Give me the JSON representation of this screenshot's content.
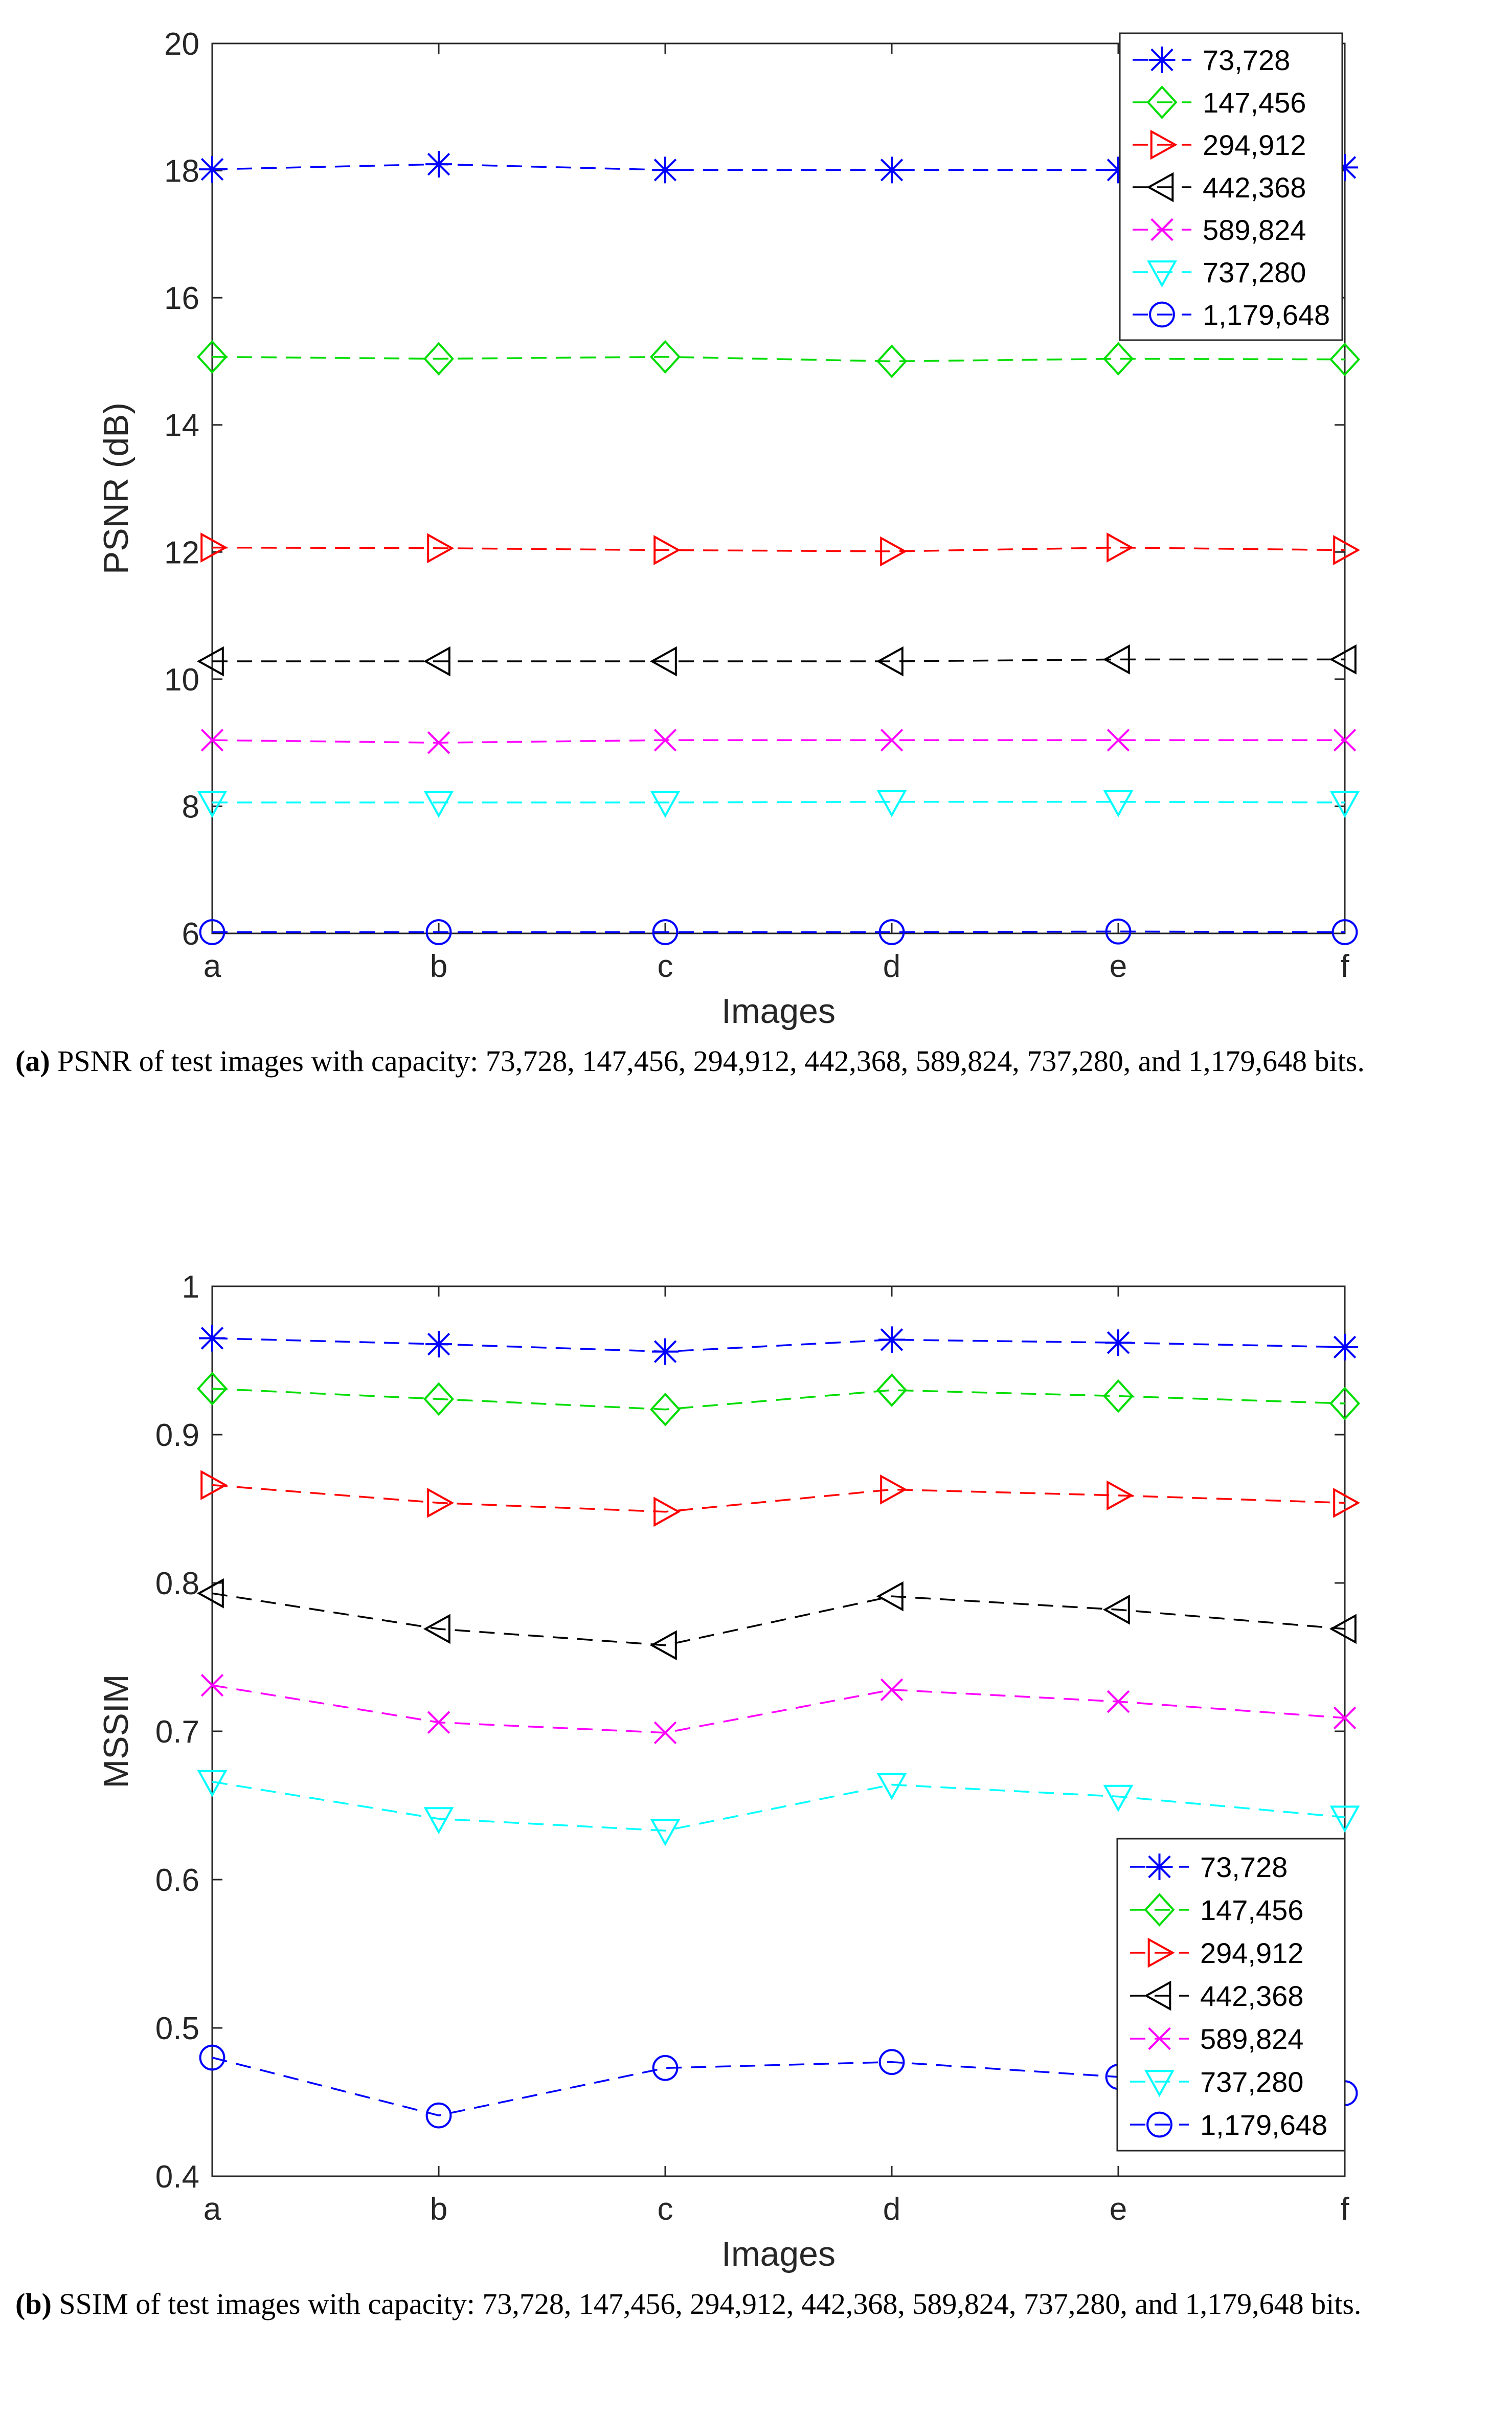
{
  "colors": {
    "blue": "#0000ff",
    "green": "#00dd00",
    "red": "#ff0000",
    "black": "#000000",
    "magenta": "#ff00ff",
    "cyan": "#00ffff",
    "axis": "#262626"
  },
  "series_meta": [
    {
      "name": "73,728",
      "color": "blue",
      "marker": "asterisk"
    },
    {
      "name": "147,456",
      "color": "green",
      "marker": "diamond"
    },
    {
      "name": "294,912",
      "color": "red",
      "marker": "triangle-right"
    },
    {
      "name": "442,368",
      "color": "black",
      "marker": "triangle-left"
    },
    {
      "name": "589,824",
      "color": "magenta",
      "marker": "x"
    },
    {
      "name": "737,280",
      "color": "cyan",
      "marker": "triangle-down"
    },
    {
      "name": "1,179,648",
      "color": "blue",
      "marker": "circle"
    }
  ],
  "captions": {
    "a": {
      "tag": "(a)",
      "text": " PSNR of test images with capacity: 73,728, 147,456, 294,912, 442,368, 589,824, 737,280, and 1,179,648 bits."
    },
    "b": {
      "tag": "(b)",
      "text": " SSIM of test images with capacity: 73,728, 147,456, 294,912, 442,368, 589,824, 737,280, and 1,179,648 bits."
    }
  },
  "chart_data": [
    {
      "type": "line",
      "title": "",
      "xlabel": "Images",
      "ylabel": "PSNR (dB)",
      "categories": [
        "a",
        "b",
        "c",
        "d",
        "e",
        "f"
      ],
      "ylim": [
        6,
        20
      ],
      "yticks": [
        "6",
        "8",
        "10",
        "12",
        "14",
        "16",
        "18",
        "20"
      ],
      "legend_position": "top-right",
      "series": [
        {
          "name": "73,728",
          "values": [
            18.02,
            18.1,
            18.01,
            18.01,
            18.01,
            18.05
          ]
        },
        {
          "name": "147,456",
          "values": [
            15.07,
            15.04,
            15.07,
            15.0,
            15.04,
            15.03
          ]
        },
        {
          "name": "294,912",
          "values": [
            12.07,
            12.06,
            12.03,
            12.01,
            12.07,
            12.03
          ]
        },
        {
          "name": "442,368",
          "values": [
            10.28,
            10.28,
            10.28,
            10.28,
            10.31,
            10.31
          ]
        },
        {
          "name": "589,824",
          "values": [
            9.04,
            9.0,
            9.04,
            9.04,
            9.04,
            9.04
          ]
        },
        {
          "name": "737,280",
          "values": [
            8.06,
            8.06,
            8.06,
            8.07,
            8.07,
            8.06
          ]
        },
        {
          "name": "1,179,648",
          "values": [
            6.02,
            6.02,
            6.02,
            6.02,
            6.03,
            6.02
          ]
        }
      ]
    },
    {
      "type": "line",
      "title": "",
      "xlabel": "Images",
      "ylabel": "MSSIM",
      "categories": [
        "a",
        "b",
        "c",
        "d",
        "e",
        "f"
      ],
      "ylim": [
        0.4,
        1.0
      ],
      "yticks": [
        "0.4",
        "0.5",
        "0.6",
        "0.7",
        "0.8",
        "0.9",
        "1"
      ],
      "legend_position": "bottom-right",
      "series": [
        {
          "name": "73,728",
          "values": [
            0.965,
            0.961,
            0.956,
            0.964,
            0.962,
            0.959
          ]
        },
        {
          "name": "147,456",
          "values": [
            0.931,
            0.924,
            0.917,
            0.93,
            0.926,
            0.921
          ]
        },
        {
          "name": "294,912",
          "values": [
            0.866,
            0.854,
            0.848,
            0.863,
            0.859,
            0.854
          ]
        },
        {
          "name": "442,368",
          "values": [
            0.793,
            0.769,
            0.758,
            0.791,
            0.782,
            0.769
          ]
        },
        {
          "name": "589,824",
          "values": [
            0.731,
            0.706,
            0.699,
            0.728,
            0.72,
            0.709
          ]
        },
        {
          "name": "737,280",
          "values": [
            0.666,
            0.641,
            0.633,
            0.664,
            0.656,
            0.642
          ]
        },
        {
          "name": "1,179,648",
          "values": [
            0.48,
            0.441,
            0.473,
            0.477,
            0.467,
            0.456
          ]
        }
      ]
    }
  ]
}
